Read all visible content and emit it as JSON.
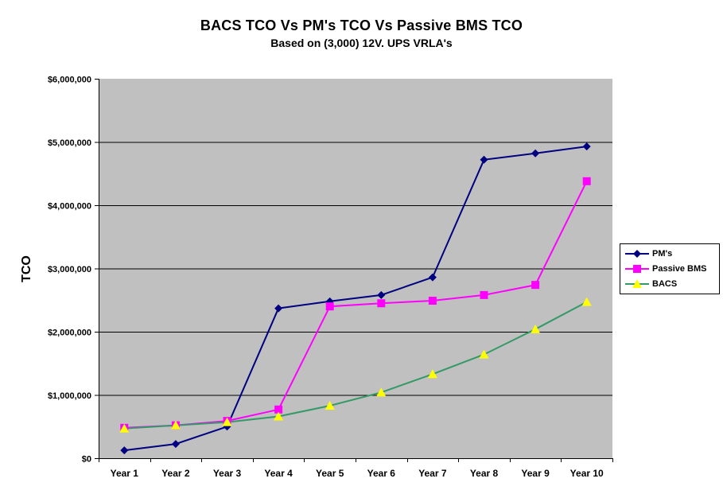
{
  "chart_data": {
    "type": "line",
    "title": "BACS TCO  Vs  PM's TCO  Vs  Passive BMS TCO",
    "subtitle": "Based on (3,000) 12V. UPS VRLA's",
    "xlabel": "",
    "ylabel": "TCO",
    "ylim": [
      0,
      6000000
    ],
    "y_ticks": [
      0,
      1000000,
      2000000,
      3000000,
      4000000,
      5000000,
      6000000
    ],
    "y_tick_labels": [
      "$0",
      "$1,000,000",
      "$2,000,000",
      "$3,000,000",
      "$4,000,000",
      "$5,000,000",
      "$6,000,000"
    ],
    "grid": true,
    "legend_position": "right",
    "categories": [
      "Year 1",
      "Year 2",
      "Year 3",
      "Year 4",
      "Year 5",
      "Year 6",
      "Year 7",
      "Year 8",
      "Year 9",
      "Year 10"
    ],
    "series": [
      {
        "name": "PM's",
        "color": "#000080",
        "marker": "diamond",
        "marker_color": "#000080",
        "values": [
          125000,
          225000,
          500000,
          2370000,
          2480000,
          2580000,
          2860000,
          4720000,
          4820000,
          4930000
        ]
      },
      {
        "name": "Passive BMS",
        "color": "#FF00FF",
        "marker": "square",
        "marker_color": "#FF00FF",
        "values": [
          480000,
          520000,
          590000,
          770000,
          2400000,
          2450000,
          2490000,
          2580000,
          2740000,
          4380000
        ]
      },
      {
        "name": "BACS",
        "color": "#339966",
        "marker": "triangle",
        "marker_color": "#FFFF00",
        "values": [
          470000,
          520000,
          570000,
          660000,
          830000,
          1040000,
          1330000,
          1640000,
          2040000,
          2470000
        ]
      }
    ]
  },
  "style": {
    "plot_background": "#C0C0C0",
    "gridline_color": "#000000",
    "background": "#FFFFFF"
  }
}
